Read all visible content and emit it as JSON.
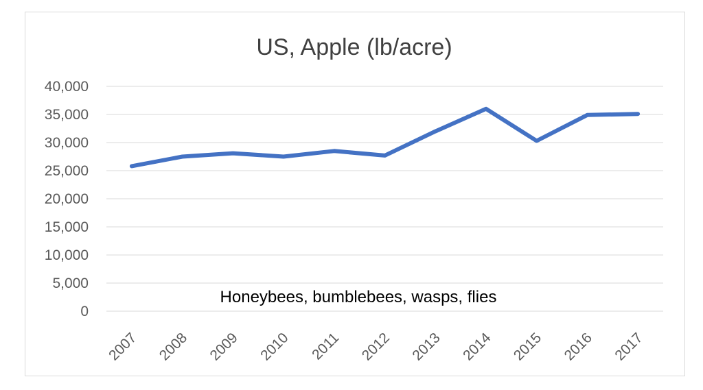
{
  "chart_data": {
    "type": "line",
    "title": "US, Apple (lb/acre)",
    "annotation": "Honeybees, bumblebees, wasps, flies",
    "xlabel": "",
    "ylabel": "",
    "categories": [
      "2007",
      "2008",
      "2009",
      "2010",
      "2011",
      "2012",
      "2013",
      "2014",
      "2015",
      "2016",
      "2017"
    ],
    "series": [
      {
        "values": [
          25800,
          27500,
          28100,
          27500,
          28500,
          27700,
          32000,
          36000,
          30300,
          34900,
          35100
        ]
      }
    ],
    "ylim": [
      0,
      40000
    ],
    "yticks": [
      0,
      5000,
      10000,
      15000,
      20000,
      25000,
      30000,
      35000,
      40000
    ],
    "ytick_labels": [
      "0",
      "5,000",
      "10,000",
      "15,000",
      "20,000",
      "25,000",
      "30,000",
      "35,000",
      "40,000"
    ],
    "grid": true,
    "legend": "none",
    "series_color": "#4472c4"
  }
}
